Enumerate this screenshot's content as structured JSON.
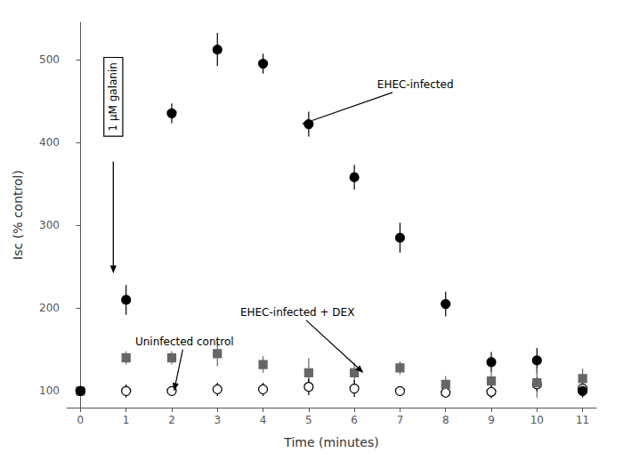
{
  "chart_data": {
    "type": "scatter",
    "xlabel": "Time (minutes)",
    "ylabel": "Isc (% control)",
    "x": [
      0,
      1,
      2,
      3,
      4,
      5,
      6,
      7,
      8,
      9,
      10,
      11
    ],
    "series": [
      {
        "name": "EHEC-infected",
        "color": "#000000",
        "marker": "circle",
        "values": [
          100,
          210,
          435,
          512,
          495,
          422,
          358,
          285,
          205,
          135,
          137,
          100
        ],
        "errors": [
          0,
          18,
          12,
          20,
          12,
          15,
          15,
          18,
          15,
          12,
          15,
          8
        ]
      },
      {
        "name": "EHEC-infected + DEX",
        "color": "#666666",
        "marker": "square",
        "values": [
          100,
          140,
          140,
          145,
          132,
          122,
          122,
          128,
          108,
          112,
          110,
          115
        ],
        "errors": [
          0,
          8,
          8,
          15,
          10,
          18,
          12,
          8,
          10,
          18,
          18,
          12
        ]
      },
      {
        "name": "Uninfected control",
        "color": "#000000",
        "marker": "open circle",
        "values": [
          100,
          100,
          100,
          102,
          102,
          105,
          103,
          100,
          98,
          99,
          108,
          103
        ],
        "errors": [
          0,
          8,
          5,
          8,
          8,
          10,
          10,
          5,
          5,
          8,
          8,
          8
        ]
      }
    ],
    "xlim": [
      -0.3,
      11.3
    ],
    "ylim": [
      80,
      545
    ],
    "xticks": [
      0,
      1,
      2,
      3,
      4,
      5,
      6,
      7,
      8,
      9,
      10,
      11
    ],
    "yticks": [
      100,
      200,
      300,
      400,
      500
    ],
    "annotations": [
      "1 μM galanin"
    ],
    "grid": false
  }
}
